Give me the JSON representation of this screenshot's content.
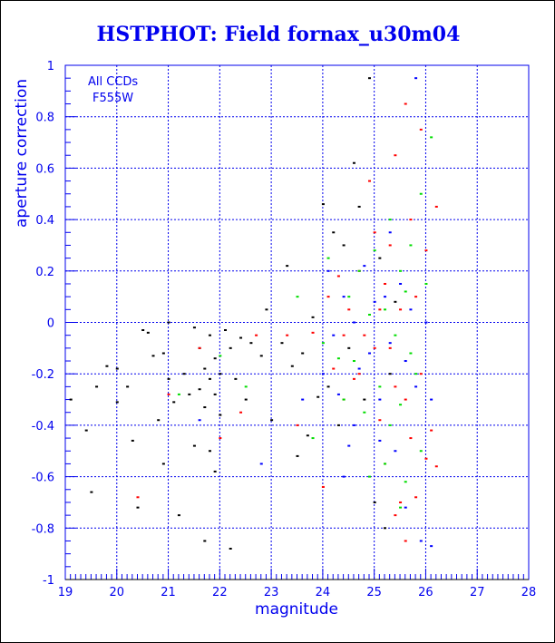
{
  "chart_data": {
    "type": "scatter",
    "title": "HSTPHOT: Field fornax_u30m04",
    "xlabel": "magnitude",
    "ylabel": "aperture correction",
    "xlim": [
      19,
      28
    ],
    "ylim": [
      -1,
      1
    ],
    "xticks": [
      "19",
      "20",
      "21",
      "22",
      "23",
      "24",
      "25",
      "26",
      "27",
      "28"
    ],
    "yticks": [
      "-1",
      "-0.8",
      "-0.6",
      "-0.4",
      "-0.2",
      "0",
      "0.2",
      "0.4",
      "0.6",
      "0.8",
      "1"
    ],
    "grid": true,
    "annotations": [
      "All CCDs",
      "F555W"
    ],
    "colors": {
      "axis": "#0000ee",
      "grid": "#0000ee"
    },
    "series": [
      {
        "color": "#000000",
        "points": [
          [
            19.1,
            -0.3
          ],
          [
            19.4,
            -0.42
          ],
          [
            19.5,
            -0.66
          ],
          [
            19.6,
            -0.25
          ],
          [
            19.8,
            -0.17
          ],
          [
            20.0,
            -0.18
          ],
          [
            20.0,
            -0.31
          ],
          [
            20.2,
            -0.25
          ],
          [
            20.3,
            -0.46
          ],
          [
            20.4,
            -0.72
          ],
          [
            20.5,
            -0.03
          ],
          [
            20.6,
            -0.04
          ],
          [
            20.7,
            -0.13
          ],
          [
            20.8,
            -0.38
          ],
          [
            20.9,
            -0.12
          ],
          [
            21.0,
            -0.22
          ],
          [
            21.1,
            -0.31
          ],
          [
            21.2,
            -0.75
          ],
          [
            21.3,
            -0.2
          ],
          [
            21.4,
            -0.28
          ],
          [
            21.5,
            -0.02
          ],
          [
            21.6,
            -0.1
          ],
          [
            21.6,
            -0.26
          ],
          [
            21.7,
            -0.18
          ],
          [
            21.7,
            -0.33
          ],
          [
            21.8,
            -0.05
          ],
          [
            21.8,
            -0.22
          ],
          [
            21.9,
            -0.14
          ],
          [
            21.9,
            -0.28
          ],
          [
            22.0,
            -0.2
          ],
          [
            22.0,
            -0.36
          ],
          [
            21.8,
            -0.5
          ],
          [
            21.9,
            -0.58
          ],
          [
            21.5,
            -0.48
          ],
          [
            21.7,
            -0.85
          ],
          [
            22.1,
            -0.03
          ],
          [
            22.2,
            -0.1
          ],
          [
            22.3,
            -0.22
          ],
          [
            22.4,
            -0.06
          ],
          [
            22.5,
            -0.3
          ],
          [
            22.6,
            -0.08
          ],
          [
            22.8,
            -0.13
          ],
          [
            22.9,
            0.05
          ],
          [
            23.0,
            -0.38
          ],
          [
            23.2,
            -0.08
          ],
          [
            23.3,
            0.22
          ],
          [
            23.4,
            -0.17
          ],
          [
            23.5,
            -0.52
          ],
          [
            23.6,
            -0.12
          ],
          [
            23.7,
            -0.44
          ],
          [
            23.8,
            0.02
          ],
          [
            23.9,
            -0.29
          ],
          [
            24.0,
            0.46
          ],
          [
            24.1,
            -0.25
          ],
          [
            24.2,
            0.35
          ],
          [
            24.3,
            -0.4
          ],
          [
            24.4,
            0.3
          ],
          [
            24.5,
            -0.1
          ],
          [
            24.6,
            0.62
          ],
          [
            24.7,
            0.45
          ],
          [
            24.8,
            -0.3
          ],
          [
            24.9,
            0.95
          ],
          [
            25.0,
            -0.7
          ],
          [
            25.1,
            0.25
          ],
          [
            25.2,
            -0.8
          ],
          [
            25.3,
            -0.2
          ],
          [
            25.4,
            0.08
          ],
          [
            22.2,
            -0.88
          ],
          [
            21.0,
            0.0
          ],
          [
            20.9,
            -0.55
          ]
        ]
      },
      {
        "color": "#ff0000",
        "points": [
          [
            20.4,
            -0.68
          ],
          [
            21.0,
            -0.28
          ],
          [
            21.6,
            -0.1
          ],
          [
            22.0,
            -0.45
          ],
          [
            22.4,
            -0.35
          ],
          [
            22.7,
            -0.05
          ],
          [
            23.3,
            -0.05
          ],
          [
            23.5,
            -0.4
          ],
          [
            23.8,
            -0.04
          ],
          [
            24.0,
            -0.64
          ],
          [
            24.1,
            0.1
          ],
          [
            24.2,
            -0.18
          ],
          [
            24.3,
            0.18
          ],
          [
            24.4,
            -0.3
          ],
          [
            24.5,
            0.05
          ],
          [
            24.6,
            -0.22
          ],
          [
            24.7,
            0.2
          ],
          [
            24.8,
            -0.05
          ],
          [
            24.9,
            0.55
          ],
          [
            25.0,
            -0.1
          ],
          [
            25.0,
            0.35
          ],
          [
            25.1,
            -0.38
          ],
          [
            25.2,
            0.15
          ],
          [
            25.2,
            -0.55
          ],
          [
            25.3,
            0.3
          ],
          [
            25.3,
            -0.1
          ],
          [
            25.4,
            0.65
          ],
          [
            25.4,
            -0.25
          ],
          [
            25.5,
            -0.7
          ],
          [
            25.5,
            0.05
          ],
          [
            25.6,
            0.85
          ],
          [
            25.6,
            -0.3
          ],
          [
            25.7,
            -0.45
          ],
          [
            25.7,
            0.4
          ],
          [
            25.8,
            -0.68
          ],
          [
            25.8,
            0.1
          ],
          [
            25.9,
            -0.2
          ],
          [
            25.9,
            0.75
          ],
          [
            26.0,
            -0.53
          ],
          [
            26.0,
            0.28
          ],
          [
            26.1,
            -0.42
          ],
          [
            26.2,
            -0.56
          ],
          [
            26.2,
            0.45
          ],
          [
            25.4,
            -0.75
          ],
          [
            25.6,
            -0.85
          ],
          [
            24.7,
            -0.2
          ],
          [
            24.4,
            -0.05
          ],
          [
            25.1,
            0.05
          ]
        ]
      },
      {
        "color": "#00dd00",
        "points": [
          [
            21.2,
            -0.28
          ],
          [
            22.0,
            -0.13
          ],
          [
            22.5,
            -0.25
          ],
          [
            23.5,
            0.1
          ],
          [
            23.8,
            -0.45
          ],
          [
            24.0,
            -0.08
          ],
          [
            24.1,
            0.25
          ],
          [
            24.3,
            -0.14
          ],
          [
            24.4,
            -0.3
          ],
          [
            24.5,
            0.1
          ],
          [
            24.6,
            -0.15
          ],
          [
            24.7,
            0.2
          ],
          [
            24.8,
            -0.35
          ],
          [
            24.9,
            0.03
          ],
          [
            25.0,
            0.28
          ],
          [
            25.1,
            -0.25
          ],
          [
            25.2,
            0.05
          ],
          [
            25.3,
            -0.4
          ],
          [
            25.3,
            0.4
          ],
          [
            25.4,
            -0.05
          ],
          [
            25.5,
            -0.32
          ],
          [
            25.5,
            0.2
          ],
          [
            25.6,
            -0.62
          ],
          [
            25.6,
            0.12
          ],
          [
            25.7,
            -0.12
          ],
          [
            25.7,
            0.3
          ],
          [
            25.8,
            -0.2
          ],
          [
            25.9,
            0.5
          ],
          [
            26.0,
            0.15
          ],
          [
            26.1,
            0.72
          ],
          [
            25.9,
            -0.5
          ],
          [
            25.2,
            -0.55
          ],
          [
            24.9,
            -0.6
          ],
          [
            25.5,
            -0.72
          ]
        ]
      },
      {
        "color": "#0000ff",
        "points": [
          [
            21.6,
            -0.38
          ],
          [
            22.8,
            -0.55
          ],
          [
            23.6,
            -0.3
          ],
          [
            24.0,
            -0.2
          ],
          [
            24.1,
            0.2
          ],
          [
            24.2,
            -0.05
          ],
          [
            24.3,
            -0.28
          ],
          [
            24.4,
            0.1
          ],
          [
            24.5,
            -0.48
          ],
          [
            24.6,
            0.0
          ],
          [
            24.7,
            -0.18
          ],
          [
            24.8,
            0.22
          ],
          [
            24.9,
            -0.12
          ],
          [
            25.0,
            0.08
          ],
          [
            25.1,
            -0.3
          ],
          [
            25.1,
            -0.46
          ],
          [
            25.2,
            0.1
          ],
          [
            25.3,
            -0.08
          ],
          [
            25.4,
            -0.5
          ],
          [
            25.5,
            0.15
          ],
          [
            25.6,
            -0.15
          ],
          [
            25.6,
            -0.72
          ],
          [
            25.7,
            0.05
          ],
          [
            25.8,
            -0.25
          ],
          [
            25.8,
            0.95
          ],
          [
            25.9,
            -0.85
          ],
          [
            26.0,
            0.0
          ],
          [
            26.1,
            -0.3
          ],
          [
            26.1,
            -0.87
          ],
          [
            24.4,
            -0.6
          ],
          [
            25.3,
            0.35
          ],
          [
            24.6,
            -0.4
          ]
        ]
      }
    ]
  }
}
